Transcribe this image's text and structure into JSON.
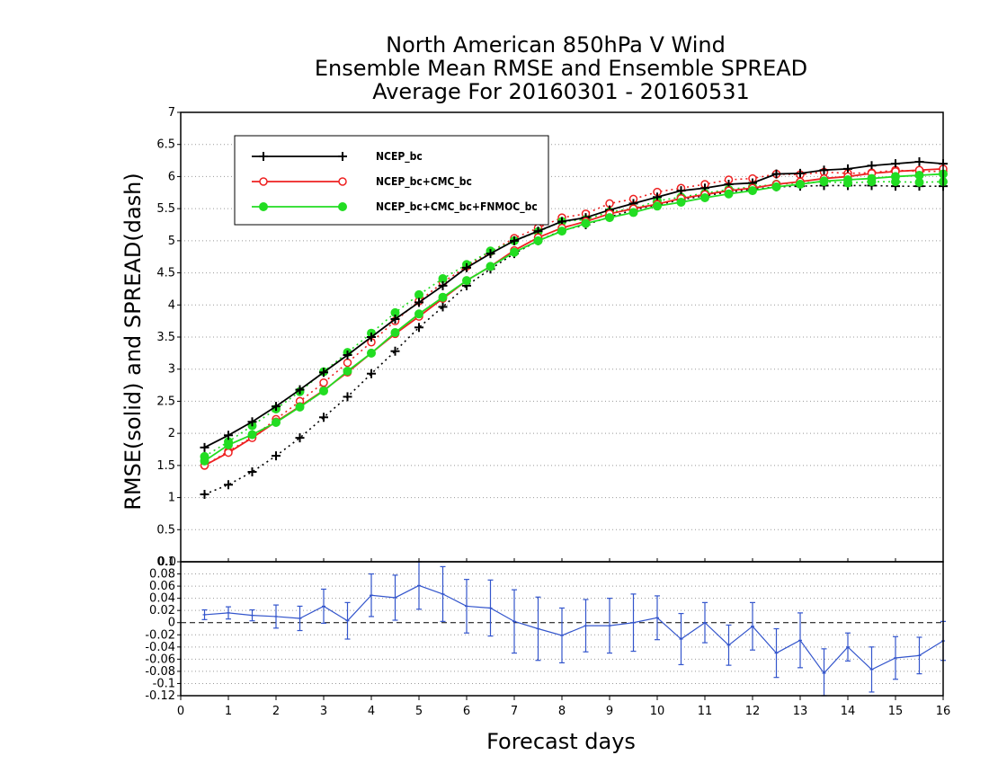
{
  "title": {
    "line1": "North American 850hPa V Wind",
    "line2": "Ensemble Mean RMSE and Ensemble SPREAD",
    "line3": "Average For 20160301 - 20160531"
  },
  "chart_data": [
    {
      "type": "line",
      "ylabel": "RMSE(solid)  and  SPREAD(dash)",
      "xlim": [
        0,
        16
      ],
      "ylim": [
        0,
        7
      ],
      "x_ticks": [
        "0",
        "1",
        "2",
        "3",
        "4",
        "5",
        "6",
        "7",
        "8",
        "9",
        "10",
        "11",
        "12",
        "13",
        "14",
        "15",
        "16"
      ],
      "y_ticks": [
        "0.5",
        "1",
        "1.5",
        "2",
        "2.5",
        "3",
        "3.5",
        "4",
        "4.5",
        "5",
        "5.5",
        "6",
        "6.5",
        "7"
      ],
      "y_zero_tick": "0.0",
      "grid": true,
      "legend_position": "top-left",
      "x": [
        0.5,
        1,
        1.5,
        2,
        2.5,
        3,
        3.5,
        4,
        4.5,
        5,
        5.5,
        6,
        6.5,
        7,
        7.5,
        8,
        8.5,
        9,
        9.5,
        10,
        10.5,
        11,
        11.5,
        12,
        12.5,
        13,
        13.5,
        14,
        14.5,
        15,
        15.5,
        16
      ],
      "series": [
        {
          "name": "NCEP_bc",
          "color": "#000000",
          "marker": "plus",
          "rmse": [
            1.78,
            1.97,
            2.18,
            2.42,
            2.68,
            2.95,
            3.22,
            3.5,
            3.78,
            4.04,
            4.3,
            4.58,
            4.8,
            5.0,
            5.15,
            5.3,
            5.36,
            5.48,
            5.58,
            5.68,
            5.78,
            5.82,
            5.88,
            5.9,
            6.04,
            6.05,
            6.1,
            6.12,
            6.17,
            6.2,
            6.23,
            6.2
          ],
          "spread": [
            1.05,
            1.2,
            1.4,
            1.65,
            1.93,
            2.25,
            2.57,
            2.93,
            3.28,
            3.65,
            3.97,
            4.3,
            4.56,
            4.8,
            5.0,
            5.16,
            5.25,
            5.37,
            5.48,
            5.56,
            5.64,
            5.7,
            5.76,
            5.8,
            5.84,
            5.85,
            5.86,
            5.86,
            5.86,
            5.85,
            5.85,
            5.85
          ]
        },
        {
          "name": "NCEP_bc+CMC_bc",
          "color": "#ee2020",
          "marker": "open-circle",
          "rmse": [
            1.5,
            1.7,
            1.93,
            2.18,
            2.42,
            2.67,
            2.95,
            3.25,
            3.55,
            3.82,
            4.1,
            4.38,
            4.6,
            4.85,
            5.05,
            5.2,
            5.3,
            5.42,
            5.5,
            5.57,
            5.66,
            5.72,
            5.78,
            5.82,
            5.88,
            5.92,
            5.97,
            6.0,
            6.05,
            6.08,
            6.1,
            6.12
          ],
          "spread": [
            1.5,
            1.72,
            1.94,
            2.22,
            2.5,
            2.79,
            3.1,
            3.42,
            3.75,
            4.06,
            4.35,
            4.6,
            4.83,
            5.04,
            5.2,
            5.36,
            5.42,
            5.58,
            5.65,
            5.76,
            5.82,
            5.88,
            5.95,
            5.97,
            6.04,
            6.03,
            6.07,
            6.05,
            6.06,
            6.1,
            6.08,
            6.08
          ]
        },
        {
          "name": "NCEP_bc+CMC_bc+FNMOC_bc",
          "color": "#22dd22",
          "marker": "filled-circle",
          "rmse": [
            1.57,
            1.82,
            1.98,
            2.17,
            2.41,
            2.66,
            2.97,
            3.25,
            3.57,
            3.86,
            4.12,
            4.38,
            4.6,
            4.82,
            5.0,
            5.15,
            5.27,
            5.36,
            5.44,
            5.54,
            5.6,
            5.67,
            5.73,
            5.78,
            5.84,
            5.88,
            5.93,
            5.95,
            5.97,
            6.0,
            6.02,
            6.04
          ],
          "spread": [
            1.64,
            1.87,
            2.12,
            2.38,
            2.65,
            2.96,
            3.26,
            3.56,
            3.88,
            4.16,
            4.41,
            4.63,
            4.84,
            5.0,
            5.14,
            5.3,
            5.33,
            5.45,
            5.5,
            5.62,
            5.68,
            5.74,
            5.8,
            5.84,
            5.88,
            5.9,
            5.92,
            5.9,
            5.92,
            5.92,
            5.91,
            5.92
          ]
        }
      ]
    },
    {
      "type": "line",
      "xlabel": "Forecast days",
      "xlim": [
        0,
        16
      ],
      "ylim": [
        -0.12,
        0.1
      ],
      "y_ticks": [
        "0.1",
        "0.08",
        "0.06",
        "0.04",
        "0.02",
        "0",
        "-0.02",
        "-0.04",
        "-0.06",
        "-0.08",
        "-0.1",
        "-0.12"
      ],
      "grid": true,
      "series": [
        {
          "color": "#3355cc",
          "marker": "error-bar",
          "x": [
            0.5,
            1,
            1.5,
            2,
            2.5,
            3,
            3.5,
            4,
            4.5,
            5,
            5.5,
            6,
            6.5,
            7,
            7.5,
            8,
            8.5,
            9,
            9.5,
            10,
            10.5,
            11,
            11.5,
            12,
            12.5,
            13,
            13.5,
            14,
            14.5,
            15,
            15.5,
            16
          ],
          "values": [
            0.013,
            0.016,
            0.012,
            0.01,
            0.007,
            0.027,
            0.003,
            0.045,
            0.041,
            0.061,
            0.047,
            0.027,
            0.024,
            0.002,
            -0.01,
            -0.021,
            -0.005,
            -0.005,
            0.0,
            0.008,
            -0.027,
            0.0,
            -0.037,
            -0.006,
            -0.05,
            -0.029,
            -0.083,
            -0.04,
            -0.077,
            -0.058,
            -0.054,
            -0.03
          ],
          "err": [
            0.008,
            0.01,
            0.009,
            0.019,
            0.02,
            0.028,
            0.03,
            0.035,
            0.037,
            0.039,
            0.045,
            0.044,
            0.046,
            0.052,
            0.052,
            0.045,
            0.043,
            0.045,
            0.047,
            0.036,
            0.042,
            0.033,
            0.033,
            0.039,
            0.04,
            0.045,
            0.04,
            0.023,
            0.037,
            0.035,
            0.03,
            0.032
          ]
        }
      ]
    }
  ]
}
